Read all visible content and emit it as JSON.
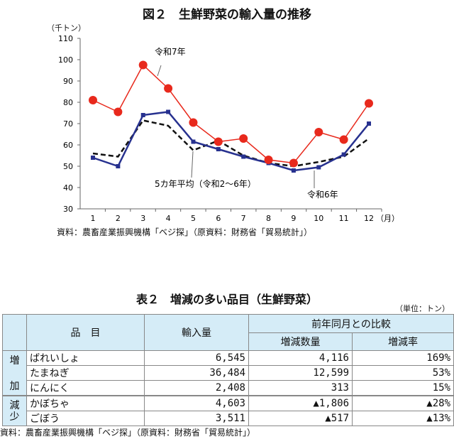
{
  "figure": {
    "title": "図２　生鮮野菜の輸入量の推移",
    "unit": "（千トン）",
    "source": "資料：農畜産業振興機構「ベジ探」（原資料：財務省「貿易統計」）"
  },
  "chart_data": {
    "type": "line",
    "title": "図２　生鮮野菜の輸入量の推移",
    "ylabel": "（千トン）",
    "xlabel": "（月）",
    "x": [
      1,
      2,
      3,
      4,
      5,
      6,
      7,
      8,
      9,
      10,
      11,
      12
    ],
    "x_ticks": [
      "1",
      "2",
      "3",
      "4",
      "5",
      "6",
      "7",
      "8",
      "9",
      "10",
      "11",
      "12"
    ],
    "y_ticks": [
      "30",
      "40",
      "50",
      "60",
      "70",
      "80",
      "90",
      "100",
      "110"
    ],
    "ylim": [
      30,
      110
    ],
    "series": [
      {
        "name": "令和7年",
        "color": "#e8291c",
        "marker": "circle",
        "values": [
          81,
          75.5,
          97.5,
          86.5,
          70.5,
          61.5,
          63,
          53,
          51.5,
          66,
          62.5,
          79.5
        ]
      },
      {
        "name": "令和6年",
        "color": "#27318f",
        "marker": "square",
        "values": [
          54,
          50,
          74,
          75.5,
          61.5,
          58,
          54.5,
          51.5,
          48,
          49.5,
          55.5,
          70
        ]
      },
      {
        "name": "5カ年平均（令和2～6年）",
        "color": "#111111",
        "marker": "none",
        "dashed": true,
        "values": [
          56,
          54.5,
          71.5,
          69,
          57.5,
          62,
          55,
          51.5,
          50,
          52,
          54.5,
          63
        ]
      }
    ]
  },
  "table": {
    "title": "表２　増減の多い品目（生鮮野菜）",
    "unit": "（単位：トン）",
    "headers": {
      "item": "品　目",
      "import": "輸入量",
      "compare": "前年同月との比較",
      "diff": "増減数量",
      "rate": "増減率"
    },
    "groups": {
      "increase_1": "増",
      "increase_2": "加",
      "decrease_1": "減",
      "decrease_2": "少"
    },
    "rows": [
      {
        "item": "ばれいしょ",
        "import": "6,545",
        "diff": "4,116",
        "rate": "169%"
      },
      {
        "item": "たまねぎ",
        "import": "36,484",
        "diff": "12,599",
        "rate": "53%"
      },
      {
        "item": "にんにく",
        "import": "2,408",
        "diff": "313",
        "rate": "15%"
      },
      {
        "item": "かぼちゃ",
        "import": "4,603",
        "diff": "▲1,806",
        "rate": "▲28%"
      },
      {
        "item": "ごぼう",
        "import": "3,511",
        "diff": "▲517",
        "rate": "▲13%"
      }
    ],
    "source": "資料：農畜産業振興機構「ベジ探」（原資料：財務省「貿易統計」）"
  }
}
